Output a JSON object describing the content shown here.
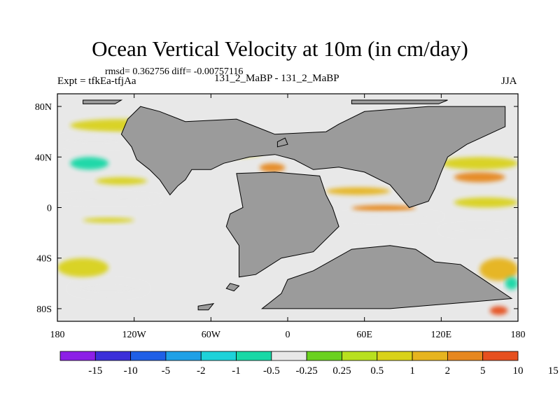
{
  "header": {
    "title": "Ocean Vertical Velocity at 10m (in cm/day)",
    "stats": "rmsd= 0.362756 diff= -0.00757116",
    "expt": "Expt = tfkEa-tfjAa",
    "runs": "131_2_MaBP - 131_2_MaBP",
    "season": "JJA"
  },
  "colors": {
    "land": "#9b9b9b",
    "ocean_neutral": "#e8e8e8",
    "palette": [
      "#8c1fe6",
      "#3b2fd9",
      "#1f5fe6",
      "#1fa0e6",
      "#1ed2d9",
      "#19d8a6",
      "#e8e8e8",
      "#6ad11f",
      "#b8e01f",
      "#d9d21a",
      "#e6b41f",
      "#e6871f",
      "#e6501f"
    ]
  },
  "chart_data": {
    "type": "heatmap",
    "title": "Ocean Vertical Velocity at 10m (in cm/day)",
    "variable": "Ocean Vertical Velocity at 10m",
    "units": "cm/day",
    "xlabel": "",
    "ylabel": "",
    "xlim": [
      -180,
      180
    ],
    "ylim": [
      -90,
      90
    ],
    "x_ticks": [
      {
        "value": -180,
        "label": "180"
      },
      {
        "value": -120,
        "label": "120W"
      },
      {
        "value": -60,
        "label": "60W"
      },
      {
        "value": 0,
        "label": "0"
      },
      {
        "value": 60,
        "label": "60E"
      },
      {
        "value": 120,
        "label": "120E"
      },
      {
        "value": 180,
        "label": "180"
      }
    ],
    "y_ticks": [
      {
        "value": 80,
        "label": "80N"
      },
      {
        "value": 40,
        "label": "40N"
      },
      {
        "value": 0,
        "label": "0"
      },
      {
        "value": -40,
        "label": "40S"
      },
      {
        "value": -80,
        "label": "80S"
      }
    ],
    "colorbar": {
      "levels": [
        "-15",
        "-10",
        "-5",
        "-2",
        "-1",
        "-0.5",
        "-0.25",
        "0.25",
        "0.5",
        "1",
        "2",
        "5",
        "10",
        "15"
      ],
      "n_bins": 13,
      "legend_position": "bottom"
    },
    "land_masks": [
      {
        "name": "continent-north",
        "points": [
          [
            -115,
            80
          ],
          [
            -100,
            76
          ],
          [
            -80,
            68
          ],
          [
            -40,
            70
          ],
          [
            -10,
            58
          ],
          [
            30,
            60
          ],
          [
            40,
            66
          ],
          [
            60,
            76
          ],
          [
            110,
            80
          ],
          [
            170,
            80
          ],
          [
            170,
            64
          ],
          [
            140,
            50
          ],
          [
            125,
            40
          ],
          [
            120,
            28
          ],
          [
            115,
            15
          ],
          [
            110,
            5
          ],
          [
            95,
            0
          ],
          [
            80,
            18
          ],
          [
            60,
            28
          ],
          [
            40,
            32
          ],
          [
            20,
            30
          ],
          [
            5,
            38
          ],
          [
            -10,
            42
          ],
          [
            -30,
            40
          ],
          [
            -50,
            35
          ],
          [
            -60,
            30
          ],
          [
            -75,
            30
          ],
          [
            -80,
            22
          ],
          [
            -86,
            17
          ],
          [
            -92,
            10
          ],
          [
            -100,
            22
          ],
          [
            -108,
            30
          ],
          [
            -118,
            38
          ],
          [
            -122,
            48
          ],
          [
            -130,
            58
          ],
          [
            -125,
            70
          ]
        ]
      },
      {
        "name": "continent-central",
        "points": [
          [
            -40,
            27
          ],
          [
            -10,
            28
          ],
          [
            25,
            25
          ],
          [
            30,
            10
          ],
          [
            35,
            0
          ],
          [
            40,
            -15
          ],
          [
            20,
            -35
          ],
          [
            -5,
            -40
          ],
          [
            -25,
            -53
          ],
          [
            -38,
            -55
          ],
          [
            -38,
            -30
          ],
          [
            -48,
            -15
          ],
          [
            -45,
            -5
          ],
          [
            -35,
            0
          ]
        ]
      },
      {
        "name": "continent-south",
        "points": [
          [
            0,
            -57
          ],
          [
            20,
            -50
          ],
          [
            50,
            -33
          ],
          [
            80,
            -30
          ],
          [
            100,
            -33
          ],
          [
            115,
            -43
          ],
          [
            135,
            -45
          ],
          [
            150,
            -55
          ],
          [
            175,
            -72
          ],
          [
            80,
            -80
          ],
          [
            -20,
            -80
          ],
          [
            -5,
            -68
          ]
        ]
      },
      {
        "name": "island-greenland-west",
        "points": [
          [
            -160,
            85
          ],
          [
            -130,
            85
          ],
          [
            -135,
            82
          ],
          [
            -160,
            82
          ]
        ]
      },
      {
        "name": "island-arctic-north",
        "points": [
          [
            50,
            85
          ],
          [
            125,
            85
          ],
          [
            118,
            82
          ],
          [
            50,
            82
          ]
        ]
      },
      {
        "name": "island-small-a",
        "points": [
          [
            -8,
            48
          ],
          [
            0,
            50
          ],
          [
            -2,
            55
          ],
          [
            -8,
            52
          ]
        ]
      },
      {
        "name": "island-small-b",
        "points": [
          [
            -45,
            -60
          ],
          [
            -38,
            -62
          ],
          [
            -42,
            -66
          ],
          [
            -48,
            -64
          ]
        ]
      },
      {
        "name": "island-small-c",
        "points": [
          [
            -70,
            -78
          ],
          [
            -58,
            -76
          ],
          [
            -62,
            -81
          ],
          [
            -70,
            -81
          ]
        ]
      }
    ],
    "anomaly_regions": [
      {
        "level": 0.5,
        "lon": [
          -170,
          -90
        ],
        "lat": [
          60,
          70
        ]
      },
      {
        "level": -0.5,
        "lon": [
          -180,
          -120
        ],
        "lat": [
          48,
          58
        ]
      },
      {
        "level": -1,
        "lon": [
          -170,
          -140
        ],
        "lat": [
          30,
          40
        ]
      },
      {
        "level": 0.5,
        "lon": [
          -150,
          -110
        ],
        "lat": [
          18,
          24
        ]
      },
      {
        "level": -0.5,
        "lon": [
          -180,
          -100
        ],
        "lat": [
          4,
          10
        ]
      },
      {
        "level": 0.5,
        "lon": [
          -160,
          -120
        ],
        "lat": [
          -12,
          -8
        ]
      },
      {
        "level": 0.5,
        "lon": [
          -180,
          -140
        ],
        "lat": [
          -55,
          -40
        ]
      },
      {
        "level": -0.5,
        "lon": [
          -170,
          -110
        ],
        "lat": [
          -70,
          -58
        ]
      },
      {
        "level": 0.5,
        "lon": [
          -60,
          -20
        ],
        "lat": [
          40,
          48
        ]
      },
      {
        "level": 2,
        "lon": [
          -22,
          -2
        ],
        "lat": [
          28,
          35
        ]
      },
      {
        "level": 1,
        "lon": [
          30,
          80
        ],
        "lat": [
          10,
          16
        ]
      },
      {
        "level": 2,
        "lon": [
          50,
          100
        ],
        "lat": [
          -3,
          2
        ]
      },
      {
        "level": -0.5,
        "lon": [
          40,
          120
        ],
        "lat": [
          -10,
          -4
        ]
      },
      {
        "level": 0.5,
        "lon": [
          120,
          180
        ],
        "lat": [
          30,
          40
        ]
      },
      {
        "level": 2,
        "lon": [
          130,
          170
        ],
        "lat": [
          20,
          28
        ]
      },
      {
        "level": 0.5,
        "lon": [
          130,
          180
        ],
        "lat": [
          0,
          8
        ]
      },
      {
        "level": -0.5,
        "lon": [
          120,
          180
        ],
        "lat": [
          -22,
          -14
        ]
      },
      {
        "level": 1,
        "lon": [
          150,
          180
        ],
        "lat": [
          -58,
          -40
        ]
      },
      {
        "level": 5,
        "lon": [
          158,
          172
        ],
        "lat": [
          -85,
          -78
        ]
      },
      {
        "level": -1,
        "lon": [
          170,
          180
        ],
        "lat": [
          -65,
          -55
        ]
      }
    ]
  }
}
